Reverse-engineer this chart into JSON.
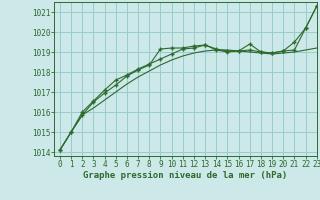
{
  "title": "Graphe pression niveau de la mer (hPa)",
  "bg_color": "#cce8e8",
  "grid_color": "#99cccc",
  "line_color": "#2d6a2d",
  "spine_color": "#2d6a2d",
  "xlim": [
    -0.5,
    23
  ],
  "ylim": [
    1013.8,
    1021.5
  ],
  "yticks": [
    1014,
    1015,
    1016,
    1017,
    1018,
    1019,
    1020,
    1021
  ],
  "xticks": [
    0,
    1,
    2,
    3,
    4,
    5,
    6,
    7,
    8,
    9,
    10,
    11,
    12,
    13,
    14,
    15,
    16,
    17,
    18,
    19,
    20,
    21,
    22,
    23
  ],
  "series1_x": [
    0,
    1,
    2,
    3,
    4,
    5,
    6,
    7,
    8,
    9,
    10,
    11,
    12,
    13,
    14,
    15,
    16,
    17,
    18,
    19,
    20,
    21,
    22,
    23
  ],
  "series1_y": [
    1014.1,
    1015.0,
    1015.85,
    1016.5,
    1016.95,
    1017.35,
    1017.8,
    1018.1,
    1018.35,
    1019.15,
    1019.2,
    1019.2,
    1019.3,
    1019.35,
    1019.1,
    1019.0,
    1019.05,
    1019.4,
    1019.0,
    1018.95,
    1019.05,
    1019.5,
    1020.2,
    1021.3
  ],
  "series2_x": [
    0,
    1,
    2,
    3,
    4,
    5,
    6,
    7,
    8,
    9,
    10,
    11,
    12,
    13,
    14,
    15,
    16,
    17,
    18,
    19,
    20,
    21,
    22,
    23
  ],
  "series2_y": [
    1014.1,
    1015.0,
    1015.85,
    1016.2,
    1016.6,
    1017.0,
    1017.4,
    1017.75,
    1018.05,
    1018.35,
    1018.6,
    1018.8,
    1018.95,
    1019.05,
    1019.1,
    1019.1,
    1019.05,
    1019.0,
    1018.95,
    1018.9,
    1018.95,
    1019.0,
    1019.1,
    1019.2
  ],
  "series3_x": [
    0,
    1,
    2,
    3,
    4,
    5,
    6,
    7,
    8,
    9,
    10,
    11,
    12,
    13,
    14,
    15,
    16,
    17,
    18,
    19,
    20,
    21,
    22,
    23
  ],
  "series3_y": [
    1014.1,
    1015.0,
    1016.0,
    1016.55,
    1017.1,
    1017.6,
    1017.85,
    1018.15,
    1018.4,
    1018.65,
    1018.9,
    1019.15,
    1019.2,
    1019.35,
    1019.15,
    1019.05,
    1019.05,
    1019.1,
    1019.0,
    1018.95,
    1019.05,
    1019.1,
    1020.2,
    1021.3
  ],
  "tick_fontsize": 5.5,
  "xlabel_fontsize": 6.5
}
